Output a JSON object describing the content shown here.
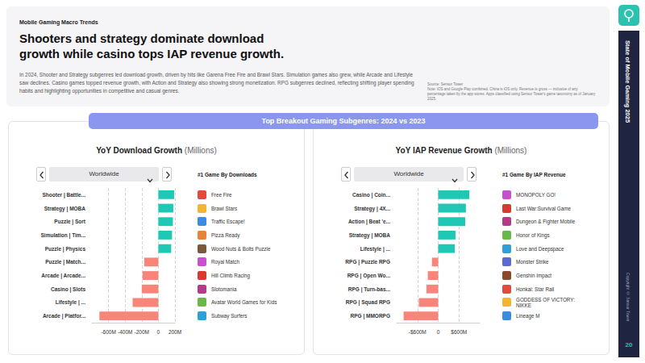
{
  "header": {
    "kicker": "Mobile Gaming Macro Trends",
    "title": "Shooters and strategy dominate download growth while casino tops IAP revenue growth.",
    "body": "In 2024, Shooter and Strategy subgenres led download growth, driven by hits like Garena Free Fire and Brawl Stars. Simulation games also grew, while Arcade and Lifestyle saw declines. Casino games topped revenue growth, with Action and Strategy also showing strong monetization. RPG subgenres declined, reflecting shifting player spending habits and highlighting opportunities in competitive and casual genres.",
    "source": "Source: Sensor Tower",
    "note": "Note: iOS and Google Play combined. China is iOS only. Revenue is gross — inclusive of any percentage taken by the app stores. Apps classified using Sensor Tower's game taxonomy as of January 2025."
  },
  "sidebar": {
    "title": "State of Mobile Gaming 2025",
    "copyright": "Copyright © Sensor Tower",
    "page": 20
  },
  "banner": "Top Breakout Gaming Subgenres: 2024 vs 2023",
  "chart_data": [
    {
      "type": "bar",
      "orientation": "horizontal",
      "title": "YoY Download Growth",
      "subtitle": "(Millions)",
      "region": "Worldwide",
      "categories": [
        "Shooter | Battle...",
        "Strategy | MOBA",
        "Puzzle | Sort",
        "Simulation | Tim...",
        "Puzzle | Physics",
        "Puzzle | Match...",
        "Arcade | Arcade...",
        "Casino | Slots",
        "Lifestyle | ...",
        "Arcade | Platfor..."
      ],
      "values": [
        190,
        180,
        175,
        165,
        155,
        -170,
        -190,
        -200,
        -310,
        -710
      ],
      "colors": [
        "#1ec8b4",
        "#1ec8b4",
        "#1ec8b4",
        "#1ec8b4",
        "#1ec8b4",
        "#f7857a",
        "#f7857a",
        "#f7857a",
        "#f7857a",
        "#f7857a"
      ],
      "xlim": [
        -800,
        200
      ],
      "xticks": [
        {
          "value": -600,
          "label": "-600M"
        },
        {
          "value": -400,
          "label": "-400M"
        },
        {
          "value": -200,
          "label": "-200M"
        },
        0,
        {
          "value": 200,
          "label": "200M"
        }
      ],
      "grid": true,
      "top_games_title": "#1 Game By Downloads",
      "top_games": [
        "Free Fire",
        "Brawl Stars",
        "Traffic Escape!",
        "Pizza Ready",
        "Wood Nuts & Bolts Puzzle",
        "Royal Match",
        "Hill Climb Racing",
        "Slotomania",
        "Avatar World Games for Kids",
        "Subway Surfers"
      ]
    },
    {
      "type": "bar",
      "orientation": "horizontal",
      "title": "YoY IAP Revenue Growth",
      "subtitle": "(Millions)",
      "region": "Worldwide",
      "categories": [
        "Casino | Coin...",
        "Strategy | 4X...",
        "Action | Beat 'e...",
        "Strategy | MOBA",
        "Lifestyle | ...",
        "RPG | Puzzle RPG",
        "RPG | Open Wo...",
        "RPG | Turn-bas...",
        "RPG | Squad RPG",
        "RPG | MMORPG"
      ],
      "values": [
        900,
        800,
        780,
        500,
        480,
        -180,
        -300,
        -340,
        -560,
        -1000
      ],
      "colors": [
        "#1ec8b4",
        "#1ec8b4",
        "#1ec8b4",
        "#1ec8b4",
        "#1ec8b4",
        "#f7857a",
        "#f7857a",
        "#f7857a",
        "#f7857a",
        "#f7857a"
      ],
      "xlim": [
        -1200,
        1200
      ],
      "xticks": [
        {
          "value": -600,
          "label": "-$600M"
        },
        0,
        {
          "value": 600,
          "label": "$600M"
        }
      ],
      "grid": true,
      "top_games_title": "#1 Game By IAP Revenue",
      "top_games": [
        "MONOPOLY GO!",
        "Last War:Survival Game",
        "Dungeon & Fighter Mobile",
        "Honor of Kings",
        "Love and Deepspace",
        "Monster Strike",
        "Genshin Impact",
        "Honkai: Star Rail",
        "GODDESS OF VICTORY: NIKKE",
        "Lineage M"
      ]
    }
  ]
}
